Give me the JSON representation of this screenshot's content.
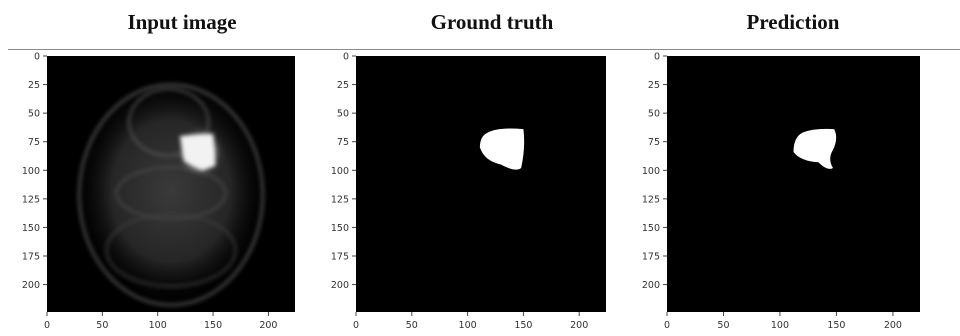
{
  "panels": [
    {
      "title": "Input image",
      "kind": "pet-scan"
    },
    {
      "title": "Ground truth",
      "kind": "mask"
    },
    {
      "title": "Prediction",
      "kind": "mask"
    }
  ],
  "axes": {
    "x_ticks": [
      0,
      50,
      100,
      150,
      200
    ],
    "y_ticks": [
      0,
      25,
      50,
      75,
      100,
      125,
      150,
      175,
      200
    ],
    "extent": [
      0,
      224
    ],
    "tick_color": "#444444",
    "label_color": "#333333"
  },
  "colors": {
    "background": "#000000",
    "mask": "#ffffff",
    "divider": "#8a8a8a"
  }
}
